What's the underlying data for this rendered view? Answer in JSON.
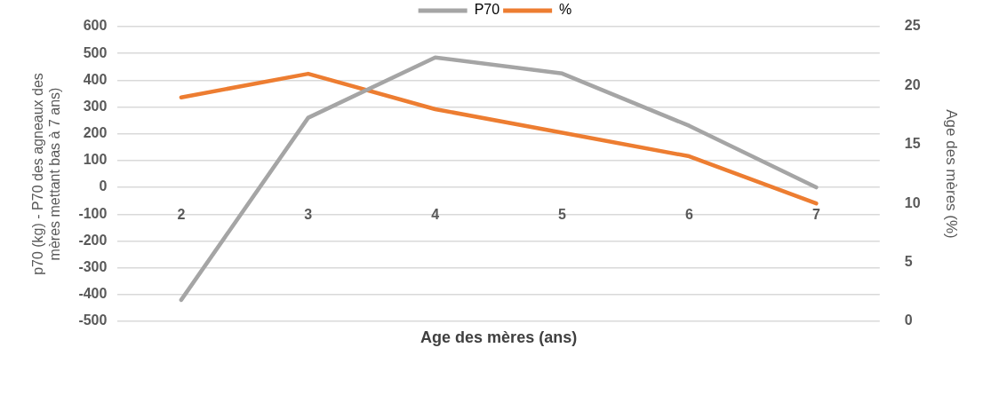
{
  "chart_data": {
    "type": "line",
    "xlabel": "Age des mères (ans)",
    "ylabel": "p70 (kg) - P70 des agneaux des mères mettant bas à 7 ans)",
    "y2label": "Age des mères (%)",
    "categories": [
      "2",
      "3",
      "4",
      "5",
      "6",
      "7"
    ],
    "series": [
      {
        "name": "P70",
        "color": "#a5a5a5",
        "values": [
          -420,
          260,
          485,
          425,
          230,
          0
        ]
      },
      {
        "name": "%",
        "color": "#ed7d31",
        "axis": "y2",
        "values": [
          19,
          21,
          18,
          16,
          14,
          10
        ]
      }
    ],
    "ylim": [
      -500,
      600
    ],
    "yticks": [
      -500,
      -400,
      -300,
      -200,
      -100,
      0,
      100,
      200,
      300,
      400,
      500,
      600
    ],
    "y2lim": [
      0,
      25
    ],
    "y2ticks": [
      0,
      5,
      10,
      15,
      20,
      25
    ],
    "grid": "y",
    "legend": "top",
    "marker": "none",
    "line_style": "solid"
  }
}
